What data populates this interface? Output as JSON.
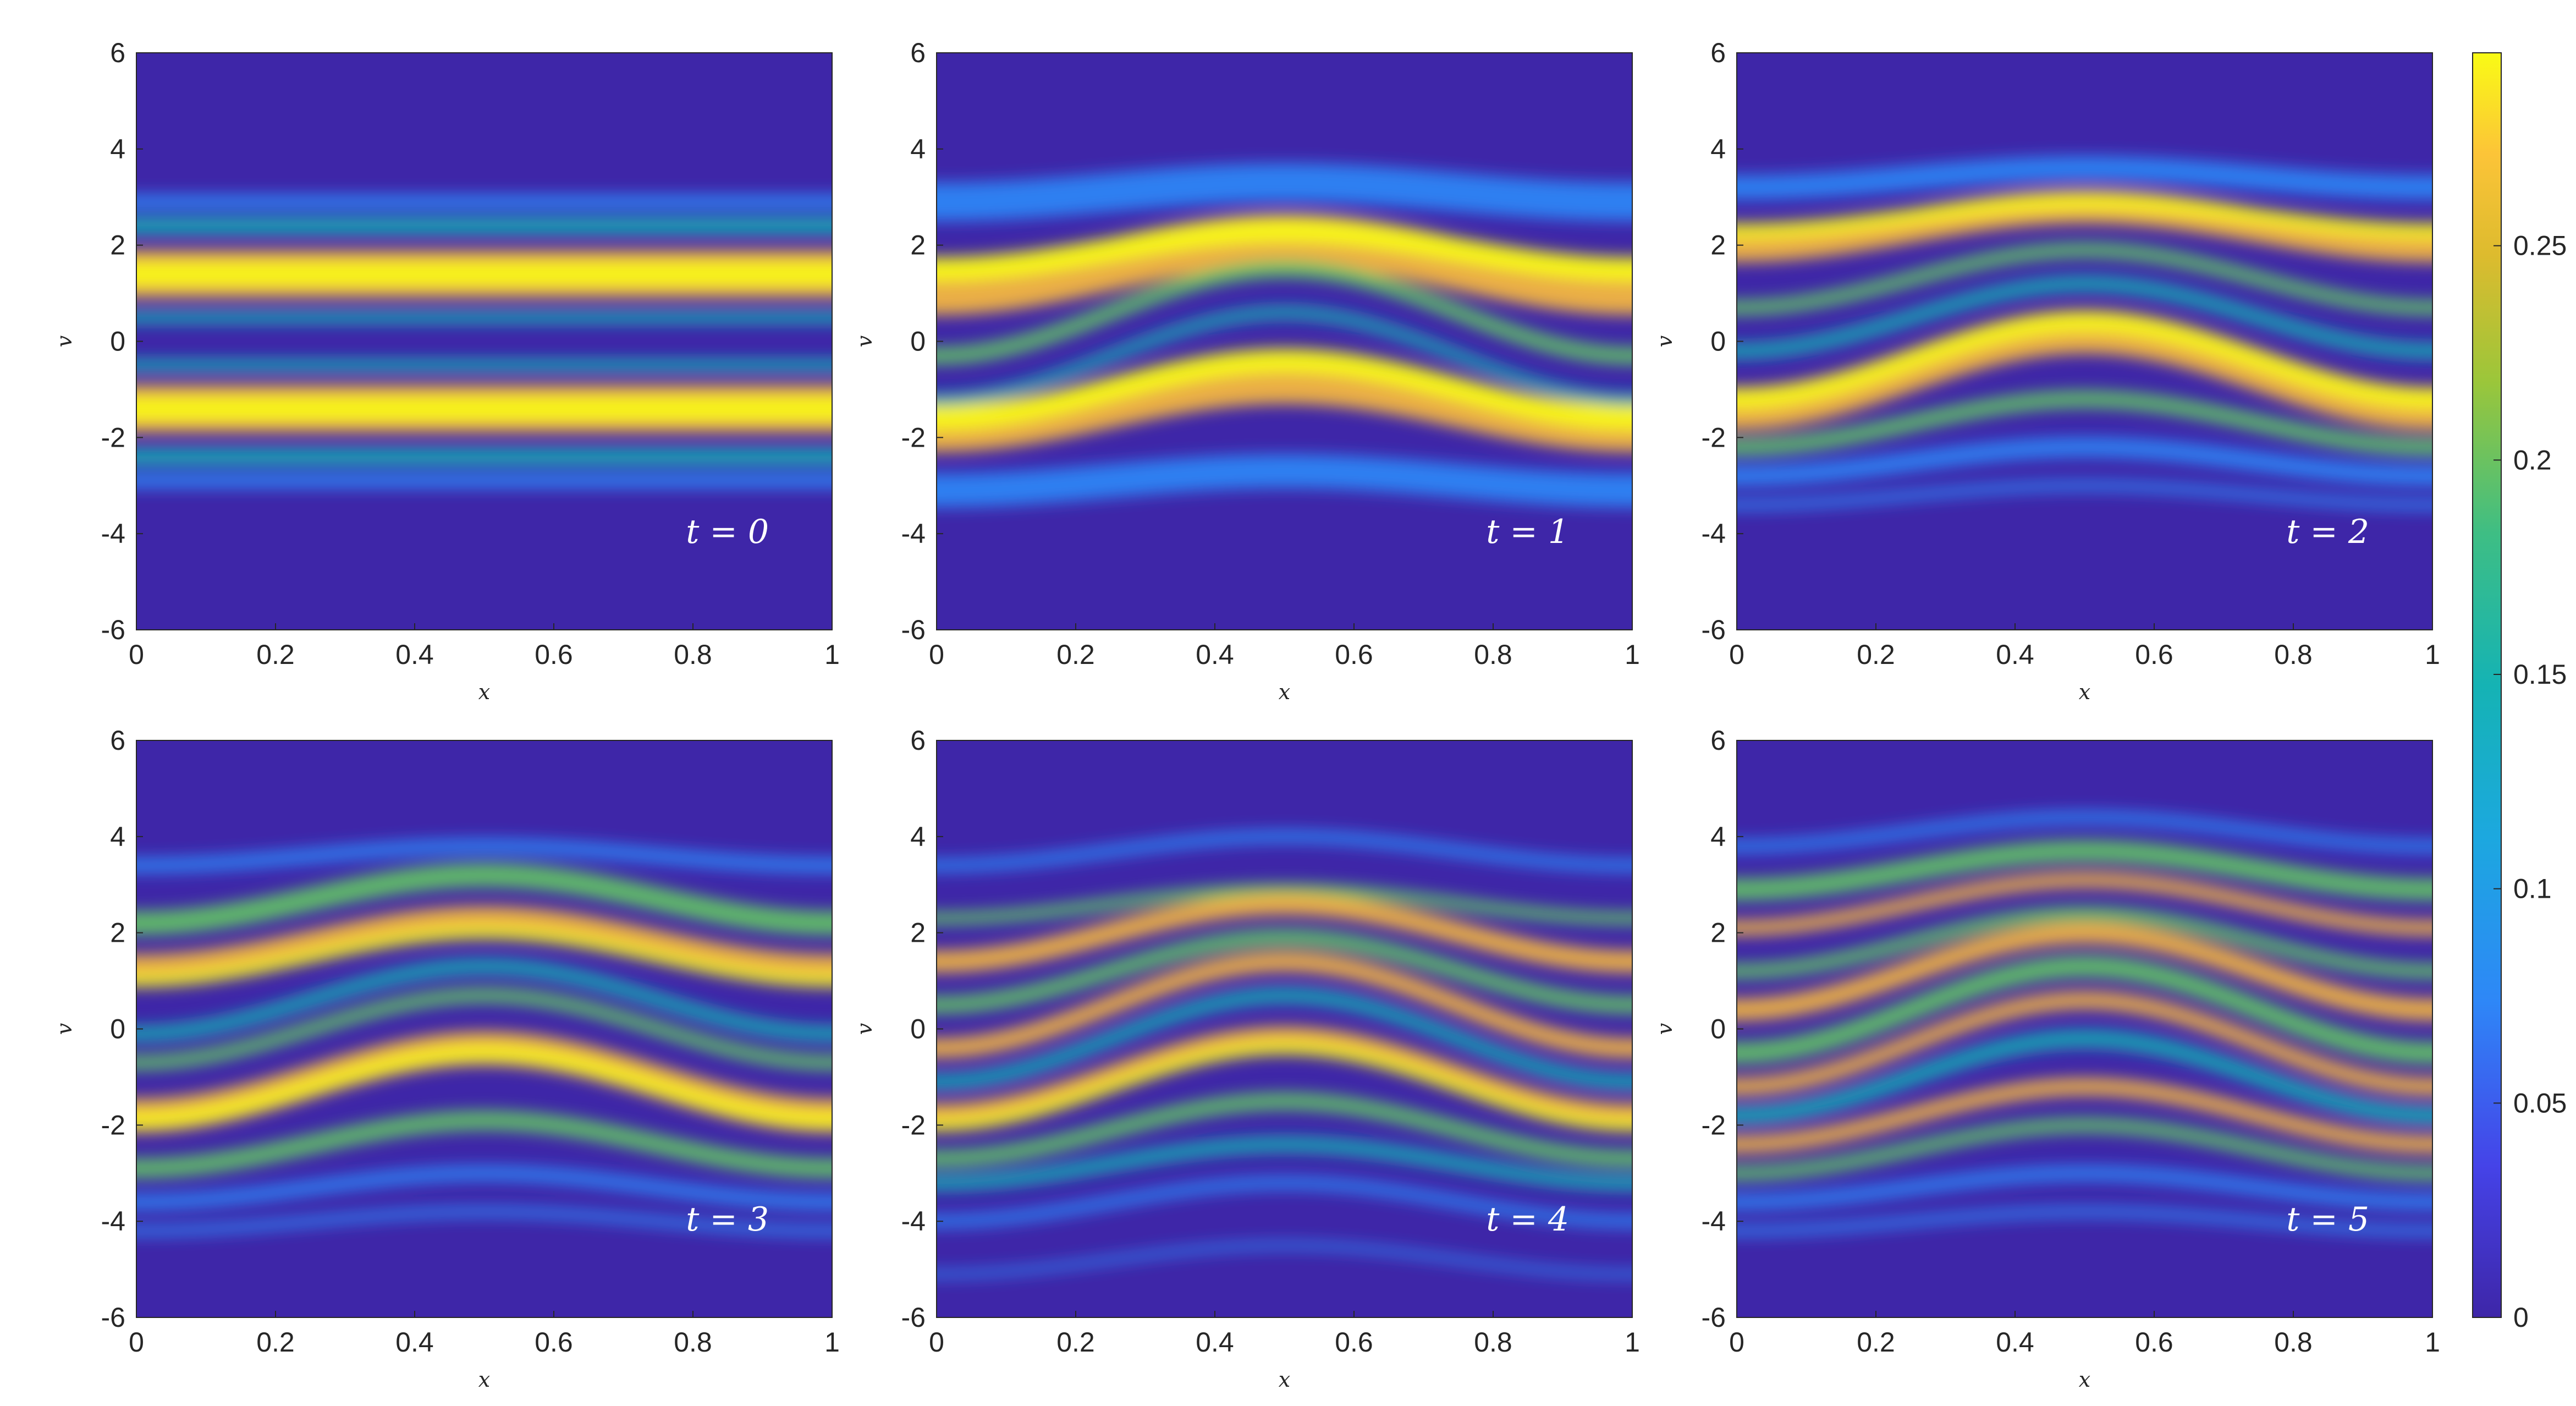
{
  "chart_data": {
    "type": "heatmap",
    "colormap": "parula",
    "panels": [
      {
        "time_label": "t = 0",
        "xlabel": "x",
        "ylabel": "v",
        "xlim": [
          0,
          1
        ],
        "ylim": [
          -6,
          6
        ]
      },
      {
        "time_label": "t = 1",
        "xlabel": "x",
        "ylabel": "v",
        "xlim": [
          0,
          1
        ],
        "ylim": [
          -6,
          6
        ]
      },
      {
        "time_label": "t = 2",
        "xlabel": "x",
        "ylabel": "v",
        "xlim": [
          0,
          1
        ],
        "ylim": [
          -6,
          6
        ]
      },
      {
        "time_label": "t = 3",
        "xlabel": "x",
        "ylabel": "v",
        "xlim": [
          0,
          1
        ],
        "ylim": [
          -6,
          6
        ]
      },
      {
        "time_label": "t = 4",
        "xlabel": "x",
        "ylabel": "v",
        "xlim": [
          0,
          1
        ],
        "ylim": [
          -6,
          6
        ]
      },
      {
        "time_label": "t = 5",
        "xlabel": "x",
        "ylabel": "v",
        "xlim": [
          0,
          1
        ],
        "ylim": [
          -6,
          6
        ]
      }
    ],
    "x_ticks": [
      "0",
      "0.2",
      "0.4",
      "0.6",
      "0.8",
      "1"
    ],
    "x_tick_values": [
      0,
      0.2,
      0.4,
      0.6,
      0.8,
      1
    ],
    "y_ticks": [
      "-6",
      "-4",
      "-2",
      "0",
      "2",
      "4",
      "6"
    ],
    "y_tick_values": [
      -6,
      -4,
      -2,
      0,
      2,
      4,
      6
    ],
    "colorbar": {
      "range": [
        0,
        0.295
      ],
      "ticks": [
        "0",
        "0.05",
        "0.1",
        "0.15",
        "0.2",
        "0.25"
      ],
      "tick_values": [
        0,
        0.05,
        0.1,
        0.15,
        0.2,
        0.25
      ]
    },
    "grid": false,
    "colors": {
      "low": "#3e26a8",
      "mid_blue": "#2e87f7",
      "cyan": "#15b3b4",
      "green": "#63c763",
      "orange": "#f8ba3d",
      "high": "#f9fb15"
    }
  }
}
